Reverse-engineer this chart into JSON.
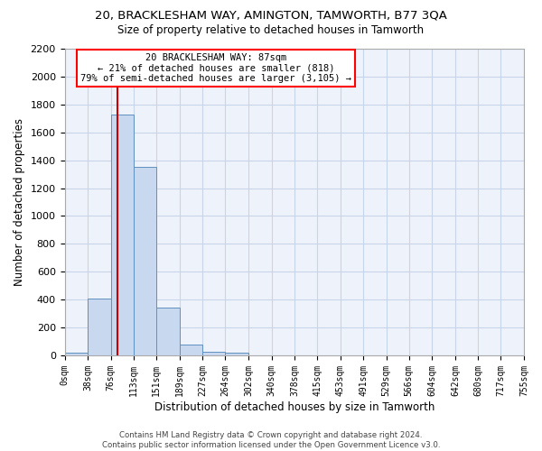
{
  "title1": "20, BRACKLESHAM WAY, AMINGTON, TAMWORTH, B77 3QA",
  "title2": "Size of property relative to detached houses in Tamworth",
  "xlabel": "Distribution of detached houses by size in Tamworth",
  "ylabel": "Number of detached properties",
  "annotation_line1": "20 BRACKLESHAM WAY: 87sqm",
  "annotation_line2": "← 21% of detached houses are smaller (818)",
  "annotation_line3": "79% of semi-detached houses are larger (3,105) →",
  "property_size_sqm": 87,
  "bin_edges": [
    0,
    38,
    76,
    113,
    151,
    189,
    227,
    264,
    302,
    340,
    378,
    415,
    453,
    491,
    529,
    566,
    604,
    642,
    680,
    717,
    755
  ],
  "bar_heights": [
    20,
    410,
    1730,
    1350,
    340,
    80,
    25,
    20,
    0,
    0,
    0,
    0,
    0,
    0,
    0,
    0,
    0,
    0,
    0,
    0
  ],
  "bar_color": "#c8d8ee",
  "bar_edge_color": "#6090c0",
  "vline_color": "#cc0000",
  "vline_x": 87,
  "ylim": [
    0,
    2200
  ],
  "yticks": [
    0,
    200,
    400,
    600,
    800,
    1000,
    1200,
    1400,
    1600,
    1800,
    2000,
    2200
  ],
  "grid_color": "#c8d4e8",
  "background_color": "#eef2fa",
  "footer_line1": "Contains HM Land Registry data © Crown copyright and database right 2024.",
  "footer_line2": "Contains public sector information licensed under the Open Government Licence v3.0."
}
